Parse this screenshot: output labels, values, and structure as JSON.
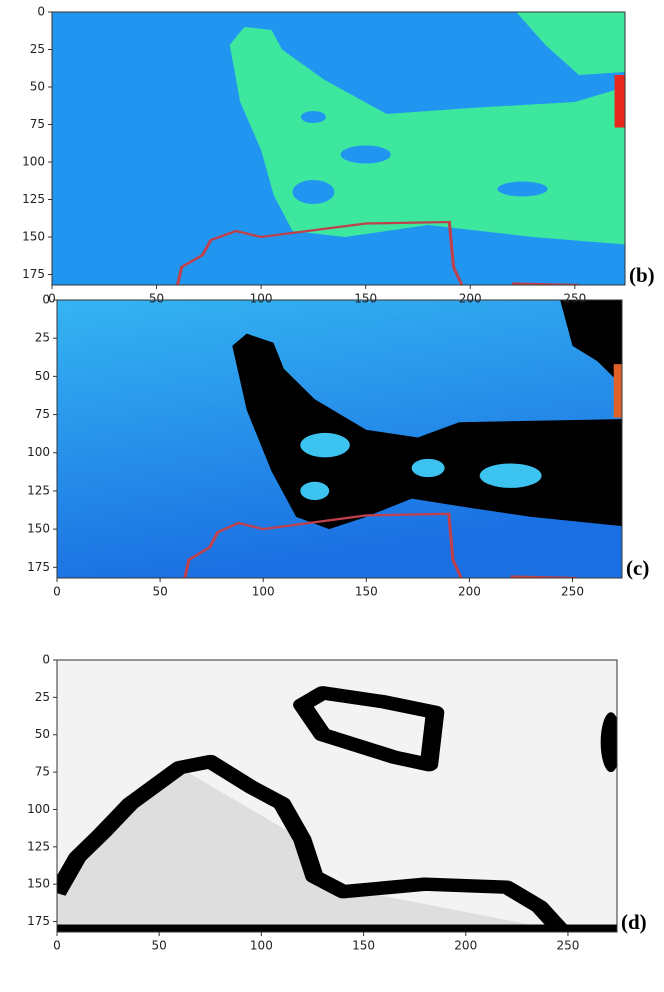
{
  "chart_data": [
    {
      "type": "image",
      "label": "(b)",
      "xlim": [
        0,
        274
      ],
      "ylim": [
        182,
        0
      ],
      "xticks": [
        0,
        50,
        100,
        150,
        200,
        250
      ],
      "yticks": [
        0,
        25,
        50,
        75,
        100,
        125,
        150,
        175
      ]
    },
    {
      "type": "image",
      "label": "(c)",
      "xlim": [
        0,
        274
      ],
      "ylim": [
        182,
        0
      ],
      "xticks": [
        0,
        50,
        100,
        150,
        200,
        250
      ],
      "yticks": [
        0,
        25,
        50,
        75,
        100,
        125,
        150,
        175
      ]
    },
    {
      "type": "image",
      "label": "(d)",
      "xlim": [
        0,
        274
      ],
      "ylim": [
        182,
        0
      ],
      "xticks": [
        0,
        50,
        100,
        150,
        200,
        250
      ],
      "yticks": [
        0,
        25,
        50,
        75,
        100,
        125,
        150,
        175
      ]
    }
  ]
}
